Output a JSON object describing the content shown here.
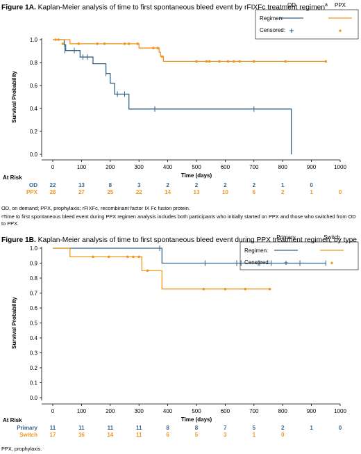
{
  "colors": {
    "blue": "#35648a",
    "orange": "#f0961e",
    "axis": "#000000"
  },
  "figure_a": {
    "title_bold": "Figure 1A.",
    "title_rest": " Kaplan-Meier analysis of time to first spontaneous bleed event by rFIXFc treatment regimen",
    "title_sup": "a",
    "footnote_1": "OD, on demand; PPX, prophylaxis; rFIXFc, recombinant factor IX Fc fusion protein.",
    "footnote_2": "ᵃTime to first spontaneous bleed event during PPX regimen analysis includes both participants who initially started on PPX and those who switched from OD to PPX."
  },
  "figure_b": {
    "title_bold": "Figure 1B.",
    "title_rest": " Kaplan-Meier analysis of time to first spontaneous bleed event during PPX treatment regimen, by type",
    "footnote_1": "PPX, prophylaxis."
  },
  "chart_data": [
    {
      "type": "line",
      "subtype": "kaplan-meier",
      "ylabel": "Survival Probability",
      "xlabel": "Time (days)",
      "xlim": [
        0,
        1000
      ],
      "ylim": [
        0,
        1.0
      ],
      "xticks": [
        "0",
        "100",
        "200",
        "300",
        "400",
        "500",
        "600",
        "700",
        "800",
        "900",
        "1000"
      ],
      "yticks": [
        "0.0",
        "0.2",
        "0.4",
        "0.6",
        "0.8",
        "1.0"
      ],
      "legend": {
        "placement": "top-right",
        "regimen_label": "Regimen:",
        "censored_label": "Censored:",
        "censored_symbol_blue": "+",
        "censored_symbol_orange": "•"
      },
      "series": [
        {
          "name": "OD",
          "color": "#35648a",
          "steps": [
            [
              0,
              1.0
            ],
            [
              40,
              0.955
            ],
            [
              45,
              0.905
            ],
            [
              95,
              0.848
            ],
            [
              140,
              0.79
            ],
            [
              185,
              0.705
            ],
            [
              200,
              0.62
            ],
            [
              215,
              0.525
            ],
            [
              265,
              0.395
            ],
            [
              830,
              0.0
            ]
          ],
          "censored": [
            [
              40,
              0.955
            ],
            [
              42,
              0.905
            ],
            [
              75,
              0.905
            ],
            [
              105,
              0.848
            ],
            [
              120,
              0.848
            ],
            [
              185,
              0.705
            ],
            [
              225,
              0.525
            ],
            [
              250,
              0.525
            ],
            [
              355,
              0.395
            ],
            [
              700,
              0.395
            ]
          ],
          "end_x": 830
        },
        {
          "name": "PPX",
          "color": "#f0961e",
          "steps": [
            [
              0,
              1.0
            ],
            [
              60,
              0.964
            ],
            [
              300,
              0.927
            ],
            [
              370,
              0.89
            ],
            [
              375,
              0.853
            ],
            [
              385,
              0.81
            ]
          ],
          "censored": [
            [
              10,
              1.0
            ],
            [
              20,
              1.0
            ],
            [
              35,
              0.964
            ],
            [
              90,
              0.964
            ],
            [
              155,
              0.964
            ],
            [
              180,
              0.964
            ],
            [
              250,
              0.964
            ],
            [
              265,
              0.964
            ],
            [
              295,
              0.964
            ],
            [
              350,
              0.927
            ],
            [
              365,
              0.927
            ],
            [
              380,
              0.853
            ],
            [
              500,
              0.81
            ],
            [
              535,
              0.81
            ],
            [
              545,
              0.81
            ],
            [
              580,
              0.81
            ],
            [
              610,
              0.81
            ],
            [
              630,
              0.81
            ],
            [
              650,
              0.81
            ],
            [
              700,
              0.81
            ],
            [
              810,
              0.81
            ],
            [
              950,
              0.81
            ]
          ],
          "end_x": 950
        }
      ],
      "at_risk": {
        "label": "At Risk",
        "rows": [
          {
            "name": "OD",
            "values": [
              "22",
              "13",
              "8",
              "3",
              "2",
              "2",
              "2",
              "2",
              "1",
              "0"
            ]
          },
          {
            "name": "PPX",
            "values": [
              "28",
              "27",
              "25",
              "22",
              "14",
              "13",
              "10",
              "6",
              "2",
              "1",
              "0"
            ]
          }
        ]
      }
    },
    {
      "type": "line",
      "subtype": "kaplan-meier",
      "ylabel": "Survival Probability",
      "xlabel": "Time (days)",
      "xlim": [
        0,
        1000
      ],
      "ylim": [
        0,
        1.0
      ],
      "xticks": [
        "0",
        "100",
        "200",
        "300",
        "400",
        "500",
        "600",
        "700",
        "800",
        "900",
        "1000"
      ],
      "yticks": [
        "0.0",
        "0.1",
        "0.2",
        "0.3",
        "0.4",
        "0.5",
        "0.6",
        "0.7",
        "0.8",
        "0.9",
        "1.0"
      ],
      "legend": {
        "placement": "top-right",
        "regimen_label": "Regimen:",
        "censored_label": "Censored:",
        "censored_symbol_blue": "+",
        "censored_symbol_orange": "•"
      },
      "series": [
        {
          "name": "Primary",
          "color": "#35648a",
          "steps": [
            [
              0,
              1.0
            ],
            [
              380,
              0.9
            ]
          ],
          "censored": [
            [
              372,
              1.0
            ],
            [
              530,
              0.9
            ],
            [
              640,
              0.9
            ],
            [
              655,
              0.9
            ],
            [
              715,
              0.9
            ],
            [
              720,
              0.9
            ],
            [
              760,
              0.9
            ],
            [
              860,
              0.9
            ],
            [
              950,
              0.9
            ]
          ],
          "end_x": 950
        },
        {
          "name": "Switch",
          "color": "#f0961e",
          "steps": [
            [
              0,
              1.0
            ],
            [
              60,
              0.943
            ],
            [
              310,
              0.85
            ],
            [
              380,
              0.727
            ]
          ],
          "censored": [
            [
              140,
              0.943
            ],
            [
              195,
              0.943
            ],
            [
              260,
              0.943
            ],
            [
              280,
              0.943
            ],
            [
              300,
              0.943
            ],
            [
              330,
              0.85
            ],
            [
              525,
              0.727
            ],
            [
              600,
              0.727
            ],
            [
              670,
              0.727
            ],
            [
              755,
              0.727
            ]
          ],
          "end_x": 755
        }
      ],
      "at_risk": {
        "label": "At Risk",
        "rows": [
          {
            "name": "Primary",
            "values": [
              "11",
              "11",
              "11",
              "11",
              "8",
              "8",
              "7",
              "5",
              "2",
              "1",
              "0"
            ]
          },
          {
            "name": "Switch",
            "values": [
              "17",
              "16",
              "14",
              "11",
              "6",
              "5",
              "3",
              "1",
              "0"
            ]
          }
        ]
      }
    }
  ]
}
